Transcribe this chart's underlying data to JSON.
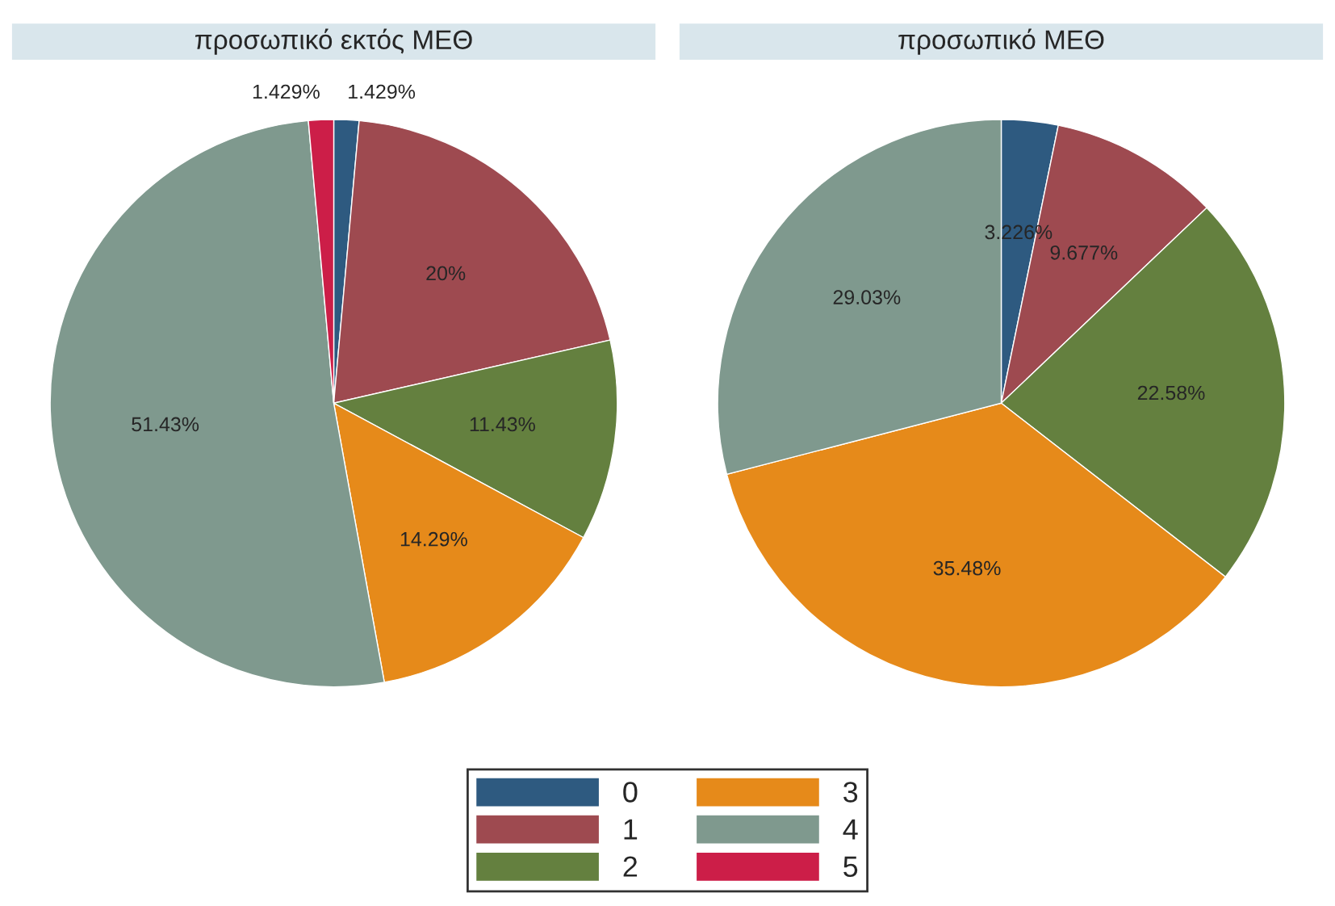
{
  "chart_data": [
    {
      "type": "pie",
      "title": "προσωπικό εκτός ΜΕΘ",
      "categories": [
        "0",
        "1",
        "2",
        "3",
        "4",
        "5"
      ],
      "values": [
        1.429,
        20,
        11.43,
        14.29,
        51.43,
        1.429
      ],
      "colors": [
        "#2e5a80",
        "#9e4a50",
        "#64803f",
        "#e68a1a",
        "#7f998e",
        "#cc1e48"
      ],
      "value_labels": [
        "1.429%",
        "20%",
        "11.43%",
        "14.29%",
        "51.43%",
        "1.429%"
      ],
      "legend": "bottom"
    },
    {
      "type": "pie",
      "title": "προσωπικό ΜΕΘ",
      "categories": [
        null,
        null,
        null,
        null,
        null
      ],
      "values": [
        3.226,
        9.677,
        22.58,
        35.48,
        29.03
      ],
      "colors": [
        "#2e5a80",
        "#9e4a50",
        "#64803f",
        "#e68a1a",
        "#7f998e"
      ],
      "value_labels": [
        "3.226%",
        "9.677%",
        "22.58%",
        "35.48%",
        "29.03%"
      ]
    }
  ]
}
